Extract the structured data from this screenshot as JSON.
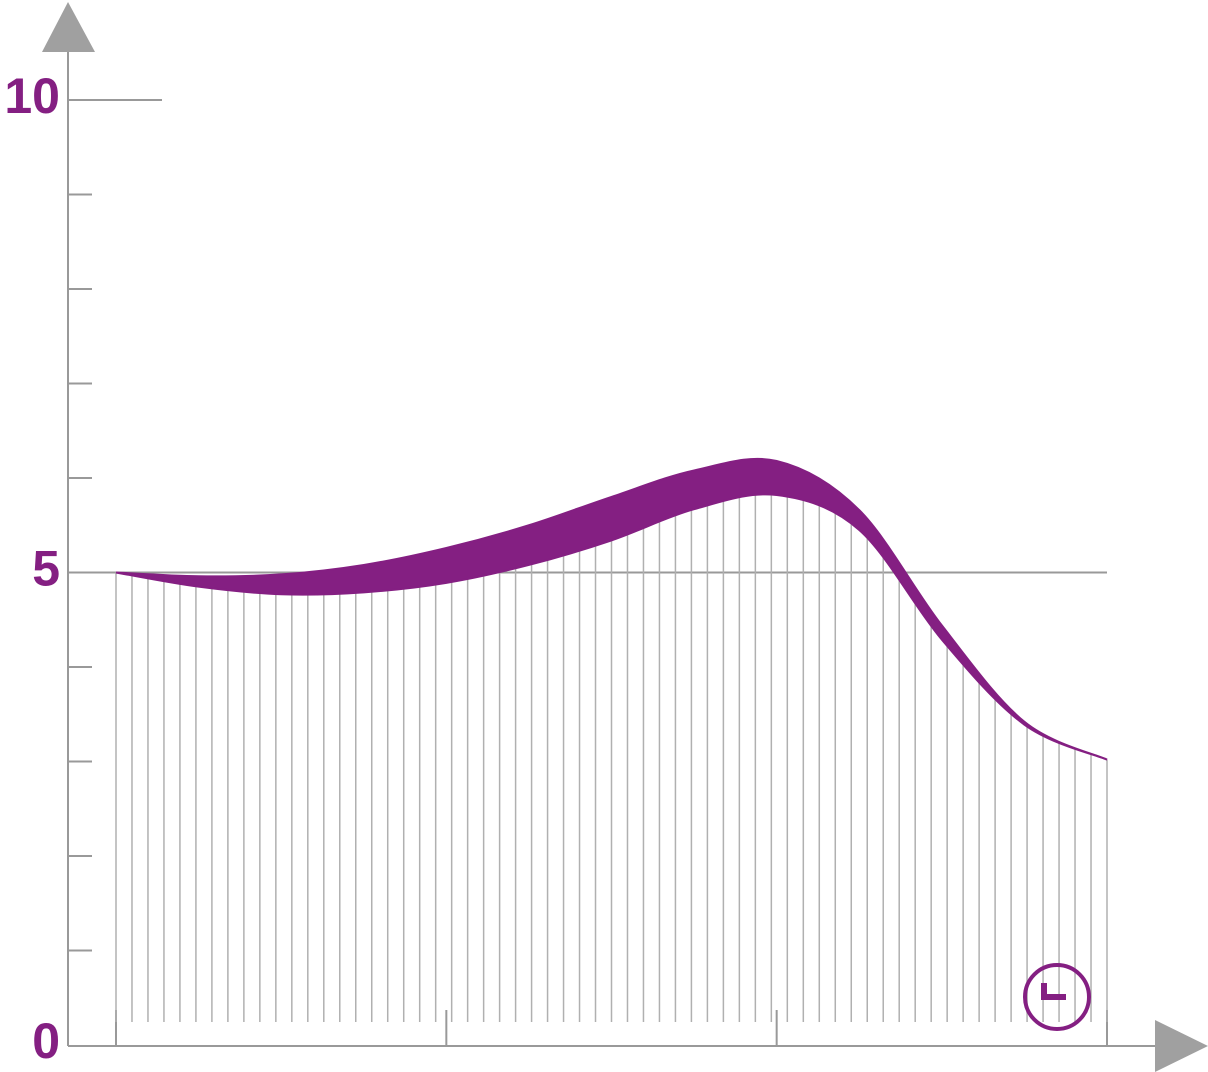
{
  "chart_data": {
    "type": "band",
    "x": [
      0,
      0.25,
      0.5,
      0.75,
      1,
      1.25,
      1.5,
      1.75,
      2,
      2.25,
      2.5,
      2.75,
      3
    ],
    "series": [
      {
        "color": "#841f82",
        "values": [
          5.0,
          4.96,
          4.98,
          5.08,
          5.26,
          5.5,
          5.8,
          6.08,
          6.18,
          5.66,
          4.44,
          3.42,
          3.02
        ]
      },
      {
        "color": "#841f82",
        "values": [
          5.0,
          4.85,
          4.77,
          4.79,
          4.89,
          5.08,
          5.34,
          5.67,
          5.82,
          5.45,
          4.29,
          3.39,
          3.02
        ]
      }
    ],
    "xlim": [
      0,
      3
    ],
    "xticks": [
      0,
      1,
      2,
      3
    ],
    "ylim": [
      0,
      10
    ],
    "yticks": [
      0,
      5,
      10
    ],
    "minor_yticks": [
      1,
      2,
      3,
      4,
      6,
      7,
      8,
      9
    ],
    "grid": true,
    "label_color": "#841f82"
  }
}
